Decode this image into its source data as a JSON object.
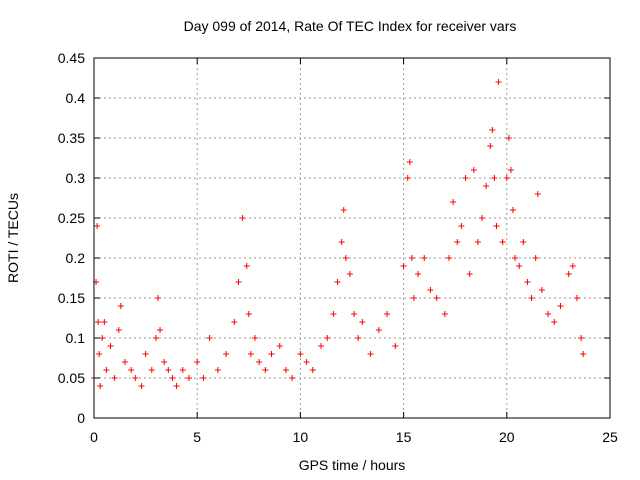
{
  "chart_data": {
    "type": "scatter",
    "title": "Day 099 of 2014, Rate Of TEC Index for receiver vars",
    "xlabel": "GPS time / hours",
    "ylabel": "ROTI / TECUs",
    "xlim": [
      0,
      25
    ],
    "ylim": [
      0,
      0.45
    ],
    "xticks": [
      0,
      5,
      10,
      15,
      20,
      25
    ],
    "xtick_labels": [
      "0",
      "5",
      "10",
      "15",
      "20",
      "25"
    ],
    "yticks": [
      0,
      0.05,
      0.1,
      0.15,
      0.2,
      0.25,
      0.3,
      0.35,
      0.4,
      0.45
    ],
    "ytick_labels": [
      "0",
      "0.05",
      "0.1",
      "0.15",
      "0.2",
      "0.25",
      "0.3",
      "0.35",
      "0.4",
      "0.45"
    ],
    "grid": true,
    "marker": "+",
    "color": "#ff0000",
    "series": [
      {
        "name": "ROTI",
        "x": [
          0.0,
          0.1,
          0.15,
          0.2,
          0.25,
          0.3,
          0.4,
          0.5,
          0.6,
          0.8,
          1.0,
          1.2,
          1.3,
          1.5,
          1.8,
          2.0,
          2.3,
          2.5,
          2.8,
          3.0,
          3.1,
          3.2,
          3.4,
          3.6,
          3.8,
          4.0,
          4.3,
          4.6,
          5.0,
          5.3,
          5.6,
          6.0,
          6.4,
          6.8,
          7.0,
          7.2,
          7.4,
          7.5,
          7.6,
          7.8,
          8.0,
          8.3,
          8.6,
          9.0,
          9.3,
          9.6,
          10.0,
          10.3,
          10.6,
          11.0,
          11.3,
          11.6,
          11.8,
          12.0,
          12.1,
          12.2,
          12.4,
          12.6,
          12.8,
          13.0,
          13.4,
          13.8,
          14.2,
          14.6,
          15.0,
          15.2,
          15.3,
          15.4,
          15.5,
          15.7,
          16.0,
          16.3,
          16.6,
          17.0,
          17.2,
          17.4,
          17.6,
          17.8,
          18.0,
          18.2,
          18.4,
          18.6,
          18.8,
          19.0,
          19.2,
          19.3,
          19.4,
          19.5,
          19.6,
          19.8,
          20.0,
          20.1,
          20.2,
          20.3,
          20.4,
          20.6,
          20.8,
          21.0,
          21.2,
          21.4,
          21.5,
          21.7,
          22.0,
          22.3,
          22.6,
          23.0,
          23.2,
          23.4,
          23.6,
          23.7
        ],
        "y": [
          0.05,
          0.17,
          0.24,
          0.12,
          0.08,
          0.04,
          0.1,
          0.12,
          0.06,
          0.09,
          0.05,
          0.11,
          0.14,
          0.07,
          0.06,
          0.05,
          0.04,
          0.08,
          0.06,
          0.1,
          0.15,
          0.11,
          0.07,
          0.06,
          0.05,
          0.04,
          0.06,
          0.05,
          0.07,
          0.05,
          0.1,
          0.06,
          0.08,
          0.12,
          0.17,
          0.25,
          0.19,
          0.13,
          0.08,
          0.1,
          0.07,
          0.06,
          0.08,
          0.09,
          0.06,
          0.05,
          0.08,
          0.07,
          0.06,
          0.09,
          0.1,
          0.13,
          0.17,
          0.22,
          0.26,
          0.2,
          0.18,
          0.13,
          0.1,
          0.12,
          0.08,
          0.11,
          0.13,
          0.09,
          0.19,
          0.3,
          0.32,
          0.2,
          0.15,
          0.18,
          0.2,
          0.16,
          0.15,
          0.13,
          0.2,
          0.27,
          0.22,
          0.24,
          0.3,
          0.18,
          0.31,
          0.22,
          0.25,
          0.29,
          0.34,
          0.36,
          0.3,
          0.24,
          0.42,
          0.22,
          0.3,
          0.35,
          0.31,
          0.26,
          0.2,
          0.19,
          0.22,
          0.17,
          0.15,
          0.2,
          0.28,
          0.16,
          0.13,
          0.12,
          0.14,
          0.18,
          0.19,
          0.15,
          0.1,
          0.08
        ]
      }
    ]
  }
}
